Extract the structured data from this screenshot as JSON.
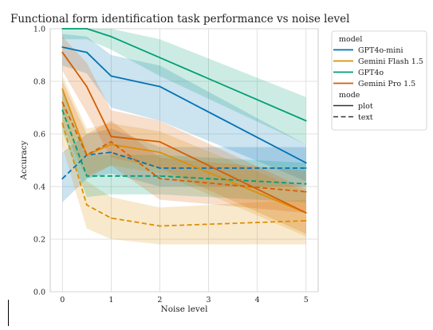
{
  "chart_data": {
    "type": "line",
    "title": "Functional form identification task performance vs noise level",
    "xlabel": "Noise level",
    "ylabel": "Accuracy",
    "xlim": [
      -0.25,
      5.25
    ],
    "ylim": [
      0.0,
      1.0
    ],
    "x_ticks": [
      0,
      1,
      2,
      3,
      4,
      5
    ],
    "y_ticks": [
      0.0,
      0.2,
      0.4,
      0.6,
      0.8,
      1.0
    ],
    "x_tick_labels": [
      "0",
      "1",
      "2",
      "3",
      "4",
      "5"
    ],
    "y_tick_labels": [
      "0.0",
      "0.2",
      "0.4",
      "0.6",
      "0.8",
      "1.0"
    ],
    "grid": true,
    "legend_placement": "outside-right",
    "legend": {
      "model_header": "model",
      "mode_header": "mode",
      "models": [
        {
          "name": "GPT4o-mini",
          "color": "#0173b2"
        },
        {
          "name": "Gemini Flash 1.5",
          "color": "#de8f05"
        },
        {
          "name": "GPT4o",
          "color": "#029e73"
        },
        {
          "name": "Gemini Pro 1.5",
          "color": "#d55e00"
        }
      ],
      "modes": [
        {
          "name": "plot",
          "dash": "solid"
        },
        {
          "name": "text",
          "dash": "dashed"
        }
      ]
    },
    "x": [
      0,
      0.5,
      1,
      2,
      5
    ],
    "series": [
      {
        "model": "GPT4o-mini",
        "mode": "plot",
        "values": [
          0.93,
          0.91,
          0.82,
          0.78,
          0.49
        ],
        "lower": [
          0.86,
          0.83,
          0.7,
          0.65,
          0.42
        ],
        "upper": [
          0.98,
          0.97,
          0.9,
          0.86,
          0.56
        ]
      },
      {
        "model": "GPT4o-mini",
        "mode": "text",
        "values": [
          0.43,
          0.52,
          0.53,
          0.47,
          0.47
        ],
        "lower": [
          0.34,
          0.43,
          0.45,
          0.4,
          0.4
        ],
        "upper": [
          0.53,
          0.6,
          0.62,
          0.55,
          0.55
        ]
      },
      {
        "model": "Gemini Flash 1.5",
        "mode": "plot",
        "values": [
          0.77,
          0.52,
          0.56,
          0.53,
          0.3
        ],
        "lower": [
          0.7,
          0.44,
          0.48,
          0.45,
          0.21
        ],
        "upper": [
          0.82,
          0.62,
          0.64,
          0.61,
          0.38
        ]
      },
      {
        "model": "Gemini Flash 1.5",
        "mode": "text",
        "values": [
          0.64,
          0.33,
          0.28,
          0.25,
          0.27
        ],
        "lower": [
          0.55,
          0.24,
          0.2,
          0.18,
          0.18
        ],
        "upper": [
          0.73,
          0.42,
          0.36,
          0.32,
          0.35
        ]
      },
      {
        "model": "GPT4o",
        "mode": "plot",
        "values": [
          1.0,
          1.0,
          0.97,
          0.89,
          0.65
        ],
        "lower": [
          0.96,
          0.96,
          0.92,
          0.82,
          0.56
        ],
        "upper": [
          1.0,
          1.0,
          1.0,
          0.96,
          0.74
        ]
      },
      {
        "model": "GPT4o",
        "mode": "text",
        "values": [
          0.69,
          0.44,
          0.44,
          0.44,
          0.41
        ],
        "lower": [
          0.61,
          0.36,
          0.37,
          0.37,
          0.34
        ],
        "upper": [
          0.77,
          0.52,
          0.52,
          0.52,
          0.49
        ]
      },
      {
        "model": "Gemini Pro 1.5",
        "mode": "plot",
        "values": [
          0.91,
          0.78,
          0.59,
          0.57,
          0.3
        ],
        "lower": [
          0.84,
          0.68,
          0.51,
          0.47,
          0.22
        ],
        "upper": [
          0.97,
          0.87,
          0.69,
          0.65,
          0.39
        ]
      },
      {
        "model": "Gemini Pro 1.5",
        "mode": "text",
        "values": [
          0.72,
          0.52,
          0.57,
          0.43,
          0.38
        ],
        "lower": [
          0.63,
          0.43,
          0.48,
          0.35,
          0.3
        ],
        "upper": [
          0.8,
          0.6,
          0.65,
          0.51,
          0.46
        ]
      }
    ]
  }
}
